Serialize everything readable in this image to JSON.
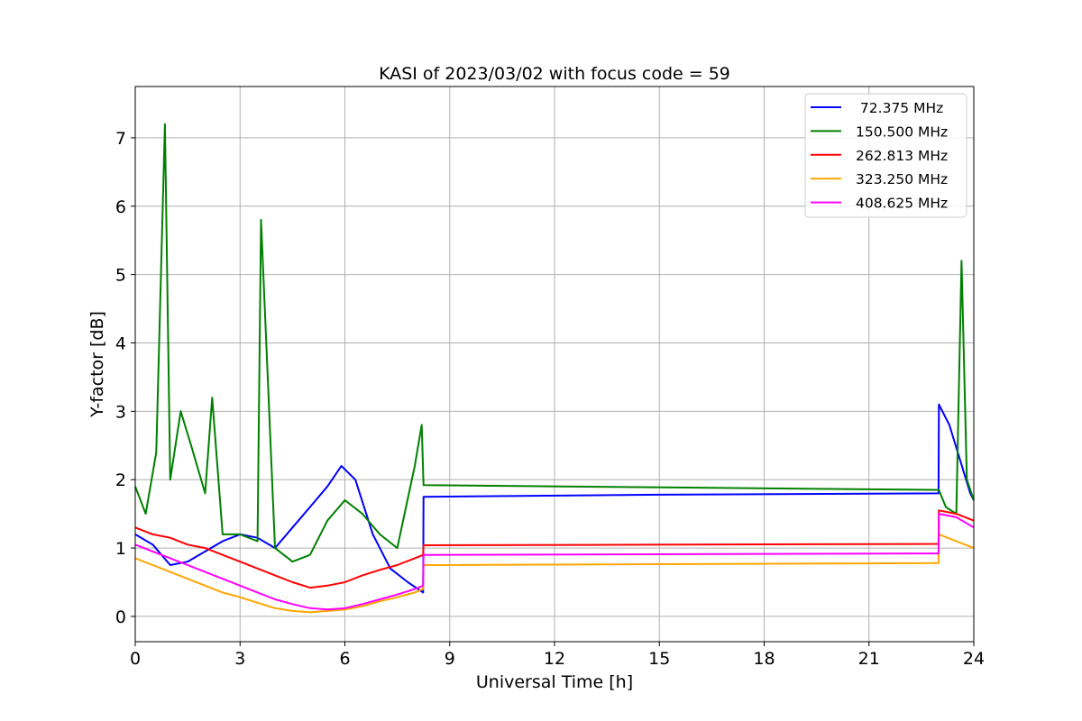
{
  "chart_data": {
    "type": "line",
    "title": "KASI of 2023/03/02 with focus code = 59",
    "xlabel": "Universal Time [h]",
    "ylabel": "Y-factor [dB]",
    "xlim": [
      0,
      24
    ],
    "ylim": [
      -0.37,
      7.75
    ],
    "xticks": [
      0,
      3,
      6,
      9,
      12,
      15,
      18,
      21,
      24
    ],
    "xtick_labels": [
      "0",
      "3",
      "6",
      "9",
      "12",
      "15",
      "18",
      "21",
      "24"
    ],
    "yticks": [
      0,
      1,
      2,
      3,
      4,
      5,
      6,
      7
    ],
    "ytick_labels": [
      "0",
      "1",
      "2",
      "3",
      "4",
      "5",
      "6",
      "7"
    ],
    "grid": true,
    "legend_position": "top-right",
    "series": [
      {
        "name": " 72.375 MHz",
        "color": "#0000ff",
        "x": [
          0,
          0.5,
          1,
          1.5,
          2,
          2.5,
          3,
          3.5,
          4,
          4.5,
          5,
          5.5,
          5.9,
          6.3,
          6.8,
          7.3,
          7.8,
          8.24,
          8.25,
          15,
          22.99,
          23.0,
          23.3,
          23.6,
          23.9,
          24
        ],
        "y": [
          1.2,
          1.05,
          0.75,
          0.8,
          0.95,
          1.1,
          1.2,
          1.15,
          1.0,
          1.3,
          1.6,
          1.9,
          2.2,
          2.0,
          1.2,
          0.7,
          0.5,
          0.35,
          1.75,
          1.78,
          1.8,
          3.1,
          2.8,
          2.3,
          1.8,
          1.7
        ]
      },
      {
        "name": "150.500 MHz",
        "color": "#008000",
        "x": [
          0,
          0.3,
          0.6,
          0.85,
          1.0,
          1.3,
          1.6,
          2.0,
          2.2,
          2.5,
          3.0,
          3.5,
          3.6,
          4.0,
          4.5,
          5.0,
          5.5,
          6.0,
          6.5,
          7.0,
          7.5,
          8.0,
          8.2,
          8.25,
          23.0,
          23.2,
          23.5,
          23.65,
          23.8,
          24
        ],
        "y": [
          1.9,
          1.5,
          2.4,
          7.2,
          2.0,
          3.0,
          2.5,
          1.8,
          3.2,
          1.2,
          1.2,
          1.1,
          5.8,
          1.0,
          0.8,
          0.9,
          1.4,
          1.7,
          1.5,
          1.2,
          1.0,
          2.2,
          2.8,
          1.92,
          1.85,
          1.6,
          1.5,
          5.2,
          2.0,
          1.7
        ]
      },
      {
        "name": "262.813 MHz",
        "color": "#ff0000",
        "x": [
          0,
          0.5,
          1,
          1.5,
          2,
          2.5,
          3,
          3.5,
          4,
          4.5,
          5,
          5.5,
          6,
          6.5,
          7,
          7.5,
          8.0,
          8.24,
          8.25,
          22.99,
          23.0,
          23.5,
          24
        ],
        "y": [
          1.3,
          1.2,
          1.15,
          1.05,
          1.0,
          0.9,
          0.8,
          0.7,
          0.6,
          0.5,
          0.42,
          0.45,
          0.5,
          0.6,
          0.68,
          0.75,
          0.85,
          0.9,
          1.04,
          1.06,
          1.55,
          1.5,
          1.4
        ]
      },
      {
        "name": "323.250 MHz",
        "color": "#ffa500",
        "x": [
          0,
          0.5,
          1,
          1.5,
          2,
          2.5,
          3,
          3.5,
          4,
          4.5,
          5,
          5.5,
          6,
          6.5,
          7,
          7.5,
          8.0,
          8.24,
          8.25,
          22.99,
          23.0,
          23.5,
          24
        ],
        "y": [
          0.85,
          0.75,
          0.65,
          0.55,
          0.45,
          0.35,
          0.28,
          0.2,
          0.12,
          0.08,
          0.06,
          0.08,
          0.1,
          0.15,
          0.22,
          0.28,
          0.35,
          0.4,
          0.75,
          0.78,
          1.2,
          1.1,
          1.0
        ]
      },
      {
        "name": "408.625 MHz",
        "color": "#ff00ff",
        "x": [
          0,
          0.5,
          1,
          1.5,
          2,
          2.5,
          3,
          3.5,
          4,
          4.5,
          5,
          5.5,
          6,
          6.5,
          7,
          7.5,
          8.0,
          8.24,
          8.25,
          22.99,
          23.0,
          23.5,
          24
        ],
        "y": [
          1.05,
          0.95,
          0.85,
          0.75,
          0.65,
          0.55,
          0.45,
          0.35,
          0.25,
          0.18,
          0.12,
          0.1,
          0.12,
          0.18,
          0.25,
          0.32,
          0.4,
          0.45,
          0.9,
          0.92,
          1.5,
          1.45,
          1.3
        ]
      }
    ]
  }
}
